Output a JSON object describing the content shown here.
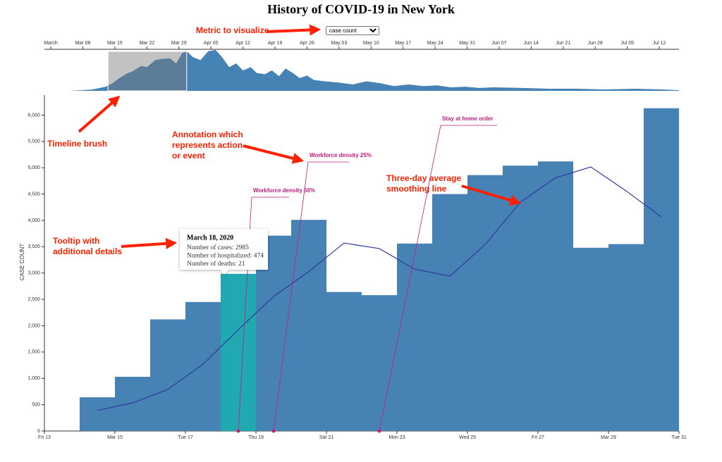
{
  "title": "History of COVID-19 in New York",
  "metric_selector": {
    "label": "Metric to visualize",
    "selected": "case count"
  },
  "callouts": [
    {
      "lines": [
        "Timeline brush"
      ]
    },
    {
      "lines": [
        "Annotation which",
        "represents action",
        "or event"
      ]
    },
    {
      "lines": [
        "Three-day average",
        "smoothing line"
      ]
    },
    {
      "lines": [
        "Tooltip with",
        "additional details"
      ]
    }
  ],
  "chart_data": [
    {
      "type": "area",
      "color": "#4682b4",
      "x": [
        1,
        5,
        10,
        13,
        14.5,
        16,
        17.6,
        19,
        20.7,
        22,
        23.8,
        25.3,
        27,
        28.4,
        29.7,
        30.7,
        32,
        33.7,
        35.4,
        37,
        38.4,
        40,
        41.5,
        43,
        44.7,
        46,
        47.8,
        49.3,
        50.9,
        52.3,
        53.9,
        55.4,
        57,
        58.5,
        60.8,
        63.9,
        67,
        70,
        73,
        76,
        79.3,
        82.4,
        85.4,
        88.5,
        91.6,
        94.7,
        97.8,
        104,
        110,
        116,
        122,
        128.6,
        134.7,
        138.3
      ],
      "values": [
        0,
        0,
        200,
        650,
        1200,
        2000,
        2700,
        3100,
        3900,
        3700,
        4800,
        5000,
        5100,
        4300,
        5900,
        6200,
        5300,
        4800,
        6200,
        6400,
        5300,
        3700,
        4300,
        3200,
        3700,
        2800,
        2600,
        3200,
        2300,
        3500,
        2800,
        2000,
        2400,
        1700,
        1500,
        1300,
        1000,
        1500,
        1200,
        750,
        1000,
        750,
        850,
        550,
        650,
        450,
        550,
        450,
        330,
        330,
        220,
        330,
        220,
        100
      ],
      "xlim": [
        -0.4,
        138.3
      ],
      "ylim": [
        0,
        6500
      ],
      "brush": [
        13.5,
        30.7
      ],
      "xticks": [
        {
          "value": 1,
          "label": "March"
        },
        {
          "value": 8,
          "label": "Mar 08"
        },
        {
          "value": 15,
          "label": "Mar 15"
        },
        {
          "value": 22,
          "label": "Mar 22"
        },
        {
          "value": 29,
          "label": "Mar 29"
        },
        {
          "value": 36,
          "label": "Apr 05"
        },
        {
          "value": 43,
          "label": "Apr 12"
        },
        {
          "value": 50,
          "label": "Apr 19"
        },
        {
          "value": 57,
          "label": "Apr 26"
        },
        {
          "value": 64,
          "label": "May 03"
        },
        {
          "value": 71,
          "label": "May 10"
        },
        {
          "value": 78,
          "label": "May 17"
        },
        {
          "value": 85,
          "label": "May 24"
        },
        {
          "value": 92,
          "label": "May 31"
        },
        {
          "value": 99,
          "label": "Jun 07"
        },
        {
          "value": 106,
          "label": "Jun 14"
        },
        {
          "value": 113,
          "label": "Jun 21"
        },
        {
          "value": 120,
          "label": "Jun 28"
        },
        {
          "value": 127,
          "label": "Jul 05"
        },
        {
          "value": 134,
          "label": "Jul 12"
        }
      ]
    },
    {
      "type": "bar",
      "color": "#4682b4",
      "highlight_color": "#20a9b0",
      "highlight": 4,
      "y_label": "CASE COUNT",
      "x": [
        14,
        15,
        16,
        17,
        18,
        19,
        20,
        21,
        22,
        23,
        24,
        25,
        26,
        27,
        28,
        29,
        30
      ],
      "values": [
        640,
        1030,
        2120,
        2450,
        2985,
        3710,
        4010,
        2640,
        2580,
        3560,
        4500,
        4860,
        5040,
        5120,
        3480,
        3550,
        6130
      ],
      "smoothing": {
        "color": "#2f3b9c",
        "values": [
          390,
          535,
          790,
          1270,
          1925,
          2555,
          3030,
          3570,
          3465,
          3075,
          2940,
          3540,
          4345,
          4810,
          5015,
          4560,
          4065
        ]
      },
      "xlim": [
        13,
        31
      ],
      "ylim": [
        0,
        6380
      ],
      "xticks": [
        {
          "value": 13,
          "label": "Fri 13"
        },
        {
          "value": 15,
          "label": "Mar 15"
        },
        {
          "value": 17,
          "label": "Tue 17"
        },
        {
          "value": 19,
          "label": "Thu 19"
        },
        {
          "value": 21,
          "label": "Sat 21"
        },
        {
          "value": 23,
          "label": "Mon 23"
        },
        {
          "value": 25,
          "label": "Wed 25"
        },
        {
          "value": 27,
          "label": "Fri 27"
        },
        {
          "value": 29,
          "label": "Mar 29"
        },
        {
          "value": 31,
          "label": "Tue 31"
        }
      ],
      "yticks": [
        0,
        500,
        {
          "value": 1000,
          "label": "1,000"
        },
        {
          "value": 1500,
          "label": "1,500"
        },
        {
          "value": 2000,
          "label": "2,000"
        },
        {
          "value": 2500,
          "label": "2,500"
        },
        {
          "value": 3000,
          "label": "3,000"
        },
        {
          "value": 3500,
          "label": "3,500"
        },
        {
          "value": 4000,
          "label": "4,000"
        },
        {
          "value": 4500,
          "label": "4,500"
        },
        {
          "value": 5000,
          "label": "5,000"
        },
        {
          "value": 5500,
          "label": "5,500"
        },
        {
          "value": 6000,
          "label": "6,000"
        }
      ],
      "annotations": [
        {
          "x": 18.5,
          "label": "Workforce density 50%"
        },
        {
          "x": 19.5,
          "label": "Workforce density 25%"
        },
        {
          "x": 22.5,
          "label": "Stay at home order"
        }
      ],
      "tooltip": {
        "title": "March 18, 2020",
        "lines": [
          "Number of cases: 2985",
          "Number of hospitalized: 474",
          "Number of deaths: 21"
        ]
      }
    }
  ]
}
